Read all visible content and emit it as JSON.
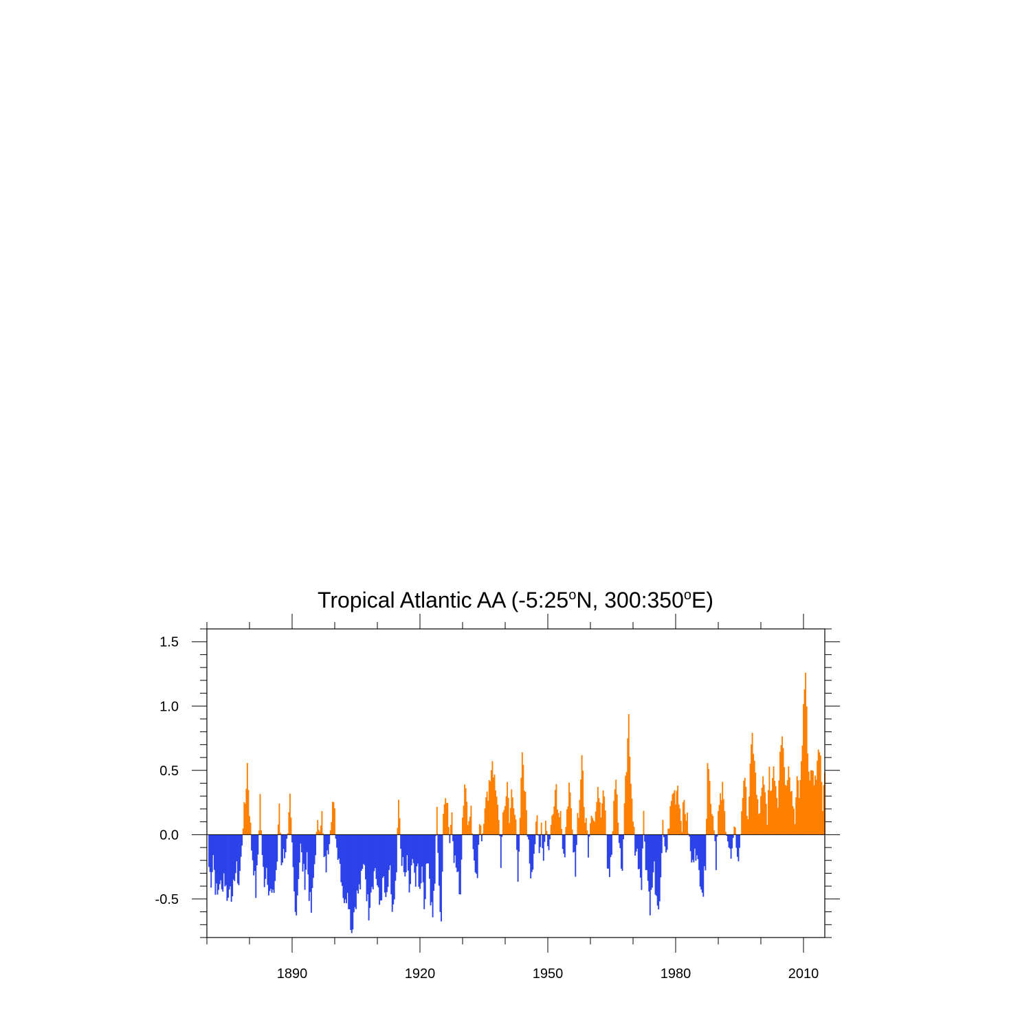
{
  "chart_data": {
    "type": "bar",
    "title": {
      "main": "Tropical Atlantic AA (-5:25",
      "deg1": "o",
      "mid": "N, 300:350",
      "deg2": "o",
      "end": "E)"
    },
    "xlabel": "",
    "ylabel": "",
    "xlim": [
      1870,
      2015
    ],
    "ylim": [
      -0.8,
      1.6
    ],
    "grid": false,
    "x_tick_labels": [
      {
        "value": 1890,
        "label": "1890"
      },
      {
        "value": 1920,
        "label": "1920"
      },
      {
        "value": 1950,
        "label": "1950"
      },
      {
        "value": 1980,
        "label": "1980"
      },
      {
        "value": 2010,
        "label": "2010"
      }
    ],
    "y_tick_labels": [
      {
        "value": -0.5,
        "label": "-0.5"
      },
      {
        "value": 0.0,
        "label": "0.0"
      },
      {
        "value": 0.5,
        "label": "0.5"
      },
      {
        "value": 1.0,
        "label": "1.0"
      },
      {
        "value": 1.5,
        "label": "1.5"
      }
    ],
    "colors": {
      "positive": "#ff8000",
      "negative": "#2b42e8",
      "axis": "#000000"
    },
    "sample_interval_years": 0.25,
    "x_start": 1870.5,
    "keyframes": [
      [
        1870.5,
        -0.25
      ],
      [
        1871.0,
        -0.35
      ],
      [
        1871.5,
        -0.15
      ],
      [
        1872.0,
        -0.4
      ],
      [
        1872.5,
        -0.48
      ],
      [
        1873.0,
        -0.35
      ],
      [
        1873.5,
        -0.45
      ],
      [
        1874.0,
        -0.3
      ],
      [
        1874.5,
        -0.42
      ],
      [
        1875.0,
        -0.5
      ],
      [
        1875.5,
        -0.35
      ],
      [
        1876.0,
        -0.55
      ],
      [
        1876.5,
        -0.3
      ],
      [
        1877.0,
        -0.28
      ],
      [
        1877.5,
        -0.38
      ],
      [
        1878.0,
        -0.2
      ],
      [
        1878.5,
        0.1
      ],
      [
        1879.0,
        0.25
      ],
      [
        1879.5,
        0.55
      ],
      [
        1880.0,
        0.2
      ],
      [
        1880.5,
        -0.1
      ],
      [
        1881.0,
        -0.25
      ],
      [
        1881.5,
        -0.45
      ],
      [
        1882.0,
        -0.15
      ],
      [
        1882.5,
        0.3
      ],
      [
        1883.0,
        -0.2
      ],
      [
        1883.5,
        -0.35
      ],
      [
        1884.0,
        -0.25
      ],
      [
        1884.5,
        -0.4
      ],
      [
        1885.0,
        -0.45
      ],
      [
        1885.5,
        -0.5
      ],
      [
        1886.0,
        -0.35
      ],
      [
        1886.5,
        -0.2
      ],
      [
        1887.0,
        0.25
      ],
      [
        1887.5,
        -0.2
      ],
      [
        1888.0,
        -0.15
      ],
      [
        1888.5,
        -0.1
      ],
      [
        1889.0,
        -0.05
      ],
      [
        1889.5,
        0.25
      ],
      [
        1890.0,
        -0.1
      ],
      [
        1890.5,
        -0.45
      ],
      [
        1891.0,
        -0.6
      ],
      [
        1891.5,
        -0.3
      ],
      [
        1892.0,
        -0.1
      ],
      [
        1892.5,
        -0.25
      ],
      [
        1893.0,
        -0.35
      ],
      [
        1893.5,
        -0.15
      ],
      [
        1894.0,
        -0.45
      ],
      [
        1894.5,
        -0.6
      ],
      [
        1895.0,
        -0.35
      ],
      [
        1895.5,
        -0.1
      ],
      [
        1896.0,
        0.05
      ],
      [
        1896.5,
        0.1
      ],
      [
        1897.0,
        0.15
      ],
      [
        1897.5,
        -0.2
      ],
      [
        1898.0,
        -0.25
      ],
      [
        1898.5,
        -0.1
      ],
      [
        1899.0,
        0.1
      ],
      [
        1899.5,
        0.25
      ],
      [
        1900.0,
        0.15
      ],
      [
        1900.5,
        -0.1
      ],
      [
        1901.0,
        -0.15
      ],
      [
        1901.5,
        -0.3
      ],
      [
        1902.0,
        -0.45
      ],
      [
        1902.5,
        -0.55
      ],
      [
        1903.0,
        -0.4
      ],
      [
        1903.5,
        -0.6
      ],
      [
        1904.0,
        -0.75
      ],
      [
        1904.5,
        -0.6
      ],
      [
        1905.0,
        -0.5
      ],
      [
        1905.5,
        -0.45
      ],
      [
        1906.0,
        -0.4
      ],
      [
        1906.5,
        -0.3
      ],
      [
        1907.0,
        -0.2
      ],
      [
        1907.5,
        -0.45
      ],
      [
        1908.0,
        -0.6
      ],
      [
        1908.5,
        -0.4
      ],
      [
        1909.0,
        -0.35
      ],
      [
        1909.5,
        -0.25
      ],
      [
        1910.0,
        -0.4
      ],
      [
        1910.5,
        -0.55
      ],
      [
        1911.0,
        -0.45
      ],
      [
        1911.5,
        -0.35
      ],
      [
        1912.0,
        -0.55
      ],
      [
        1912.5,
        -0.4
      ],
      [
        1913.0,
        -0.3
      ],
      [
        1913.5,
        -0.6
      ],
      [
        1914.0,
        -0.55
      ],
      [
        1914.5,
        -0.3
      ],
      [
        1915.0,
        0.25
      ],
      [
        1915.5,
        -0.1
      ],
      [
        1916.0,
        -0.25
      ],
      [
        1916.5,
        -0.35
      ],
      [
        1917.0,
        -0.2
      ],
      [
        1917.5,
        -0.45
      ],
      [
        1918.0,
        -0.3
      ],
      [
        1918.5,
        -0.15
      ],
      [
        1919.0,
        -0.4
      ],
      [
        1919.5,
        -0.25
      ],
      [
        1920.0,
        -0.45
      ],
      [
        1920.5,
        -0.2
      ],
      [
        1921.0,
        -0.55
      ],
      [
        1921.5,
        -0.3
      ],
      [
        1922.0,
        -0.15
      ],
      [
        1922.5,
        -0.5
      ],
      [
        1923.0,
        -0.6
      ],
      [
        1923.5,
        -0.35
      ],
      [
        1924.0,
        0.2
      ],
      [
        1924.5,
        -0.45
      ],
      [
        1925.0,
        -0.65
      ],
      [
        1925.5,
        0.1
      ],
      [
        1926.0,
        0.35
      ],
      [
        1926.5,
        0.25
      ],
      [
        1927.0,
        -0.05
      ],
      [
        1927.5,
        0.2
      ],
      [
        1928.0,
        -0.15
      ],
      [
        1928.5,
        -0.25
      ],
      [
        1929.0,
        -0.35
      ],
      [
        1929.5,
        -0.45
      ],
      [
        1930.0,
        0.15
      ],
      [
        1930.5,
        0.45
      ],
      [
        1931.0,
        0.2
      ],
      [
        1931.5,
        0.1
      ],
      [
        1932.0,
        0.25
      ],
      [
        1932.5,
        -0.15
      ],
      [
        1933.0,
        -0.25
      ],
      [
        1933.5,
        -0.4
      ],
      [
        1934.0,
        0.1
      ],
      [
        1934.5,
        -0.1
      ],
      [
        1935.0,
        0.15
      ],
      [
        1935.5,
        0.35
      ],
      [
        1936.0,
        0.25
      ],
      [
        1936.5,
        0.45
      ],
      [
        1937.0,
        0.6
      ],
      [
        1937.5,
        0.4
      ],
      [
        1938.0,
        0.25
      ],
      [
        1938.5,
        0.15
      ],
      [
        1939.0,
        -0.2
      ],
      [
        1939.5,
        0.1
      ],
      [
        1940.0,
        0.25
      ],
      [
        1940.5,
        0.4
      ],
      [
        1941.0,
        0.15
      ],
      [
        1941.5,
        0.3
      ],
      [
        1942.0,
        0.2
      ],
      [
        1942.5,
        0.1
      ],
      [
        1943.0,
        -0.3
      ],
      [
        1943.5,
        0.15
      ],
      [
        1944.0,
        0.6
      ],
      [
        1944.5,
        0.35
      ],
      [
        1945.0,
        0.2
      ],
      [
        1945.5,
        -0.1
      ],
      [
        1946.0,
        -0.3
      ],
      [
        1946.5,
        -0.2
      ],
      [
        1947.0,
        -0.05
      ],
      [
        1947.5,
        0.1
      ],
      [
        1948.0,
        -0.15
      ],
      [
        1948.5,
        0.1
      ],
      [
        1949.0,
        -0.2
      ],
      [
        1949.5,
        0.15
      ],
      [
        1950.0,
        -0.1
      ],
      [
        1950.5,
        -0.05
      ],
      [
        1951.0,
        0.15
      ],
      [
        1951.5,
        0.3
      ],
      [
        1952.0,
        0.4
      ],
      [
        1952.5,
        0.15
      ],
      [
        1953.0,
        0.25
      ],
      [
        1953.5,
        -0.1
      ],
      [
        1954.0,
        -0.25
      ],
      [
        1954.5,
        0.25
      ],
      [
        1955.0,
        0.35
      ],
      [
        1955.5,
        0.15
      ],
      [
        1956.0,
        -0.15
      ],
      [
        1956.5,
        -0.25
      ],
      [
        1957.0,
        0.15
      ],
      [
        1957.5,
        0.25
      ],
      [
        1958.0,
        0.65
      ],
      [
        1958.5,
        0.2
      ],
      [
        1959.0,
        0.1
      ],
      [
        1959.5,
        -0.1
      ],
      [
        1960.0,
        0.15
      ],
      [
        1960.5,
        0.2
      ],
      [
        1961.0,
        0.1
      ],
      [
        1961.5,
        0.25
      ],
      [
        1962.0,
        0.35
      ],
      [
        1962.5,
        0.2
      ],
      [
        1963.0,
        0.4
      ],
      [
        1963.5,
        0.25
      ],
      [
        1964.0,
        -0.2
      ],
      [
        1964.5,
        -0.3
      ],
      [
        1965.0,
        -0.15
      ],
      [
        1965.5,
        0.2
      ],
      [
        1966.0,
        0.45
      ],
      [
        1966.5,
        0.1
      ],
      [
        1967.0,
        -0.15
      ],
      [
        1967.5,
        -0.3
      ],
      [
        1968.0,
        0.25
      ],
      [
        1968.5,
        0.55
      ],
      [
        1969.0,
        0.95
      ],
      [
        1969.5,
        0.35
      ],
      [
        1970.0,
        0.15
      ],
      [
        1970.5,
        -0.1
      ],
      [
        1971.0,
        -0.15
      ],
      [
        1971.5,
        -0.25
      ],
      [
        1972.0,
        -0.35
      ],
      [
        1972.5,
        0.15
      ],
      [
        1973.0,
        -0.2
      ],
      [
        1973.5,
        -0.35
      ],
      [
        1974.0,
        -0.55
      ],
      [
        1974.5,
        -0.4
      ],
      [
        1975.0,
        -0.25
      ],
      [
        1975.5,
        -0.55
      ],
      [
        1976.0,
        -0.65
      ],
      [
        1976.5,
        -0.3
      ],
      [
        1977.0,
        0.05
      ],
      [
        1977.5,
        -0.15
      ],
      [
        1978.0,
        -0.1
      ],
      [
        1978.5,
        0.1
      ],
      [
        1979.0,
        0.25
      ],
      [
        1979.5,
        0.35
      ],
      [
        1980.0,
        0.3
      ],
      [
        1980.5,
        0.4
      ],
      [
        1981.0,
        0.2
      ],
      [
        1981.5,
        0.1
      ],
      [
        1982.0,
        0.25
      ],
      [
        1982.5,
        0.15
      ],
      [
        1983.0,
        0.05
      ],
      [
        1983.5,
        -0.15
      ],
      [
        1984.0,
        -0.25
      ],
      [
        1984.5,
        -0.05
      ],
      [
        1985.0,
        -0.2
      ],
      [
        1985.5,
        -0.3
      ],
      [
        1986.0,
        -0.35
      ],
      [
        1986.5,
        -0.45
      ],
      [
        1987.0,
        -0.2
      ],
      [
        1987.5,
        0.6
      ],
      [
        1988.0,
        0.4
      ],
      [
        1988.5,
        0.2
      ],
      [
        1989.0,
        0.1
      ],
      [
        1989.5,
        -0.2
      ],
      [
        1990.0,
        0.15
      ],
      [
        1990.5,
        0.25
      ],
      [
        1991.0,
        0.35
      ],
      [
        1991.5,
        0.15
      ],
      [
        1992.0,
        0.05
      ],
      [
        1992.5,
        -0.1
      ],
      [
        1993.0,
        -0.2
      ],
      [
        1993.5,
        -0.1
      ],
      [
        1994.0,
        0.1
      ],
      [
        1994.5,
        -0.2
      ],
      [
        1995.0,
        -0.15
      ],
      [
        1995.5,
        0.2
      ],
      [
        1996.0,
        0.45
      ],
      [
        1996.5,
        0.3
      ],
      [
        1997.0,
        0.15
      ],
      [
        1997.5,
        0.5
      ],
      [
        1998.0,
        0.75
      ],
      [
        1998.5,
        0.6
      ],
      [
        1999.0,
        0.3
      ],
      [
        1999.5,
        0.15
      ],
      [
        2000.0,
        0.25
      ],
      [
        2000.5,
        0.4
      ],
      [
        2001.0,
        0.3
      ],
      [
        2001.5,
        0.15
      ],
      [
        2002.0,
        0.45
      ],
      [
        2002.5,
        0.35
      ],
      [
        2003.0,
        0.55
      ],
      [
        2003.5,
        0.4
      ],
      [
        2004.0,
        0.25
      ],
      [
        2004.5,
        0.7
      ],
      [
        2005.0,
        0.8
      ],
      [
        2005.5,
        0.55
      ],
      [
        2006.0,
        0.35
      ],
      [
        2006.5,
        0.6
      ],
      [
        2007.0,
        0.4
      ],
      [
        2007.5,
        0.25
      ],
      [
        2008.0,
        0.15
      ],
      [
        2008.5,
        0.4
      ],
      [
        2009.0,
        0.3
      ],
      [
        2009.5,
        0.55
      ],
      [
        2010.0,
        0.95
      ],
      [
        2010.5,
        1.3
      ],
      [
        2011.0,
        0.7
      ],
      [
        2011.5,
        0.4
      ],
      [
        2012.0,
        0.55
      ],
      [
        2012.5,
        0.35
      ],
      [
        2013.0,
        0.45
      ],
      [
        2013.5,
        0.65
      ],
      [
        2014.0,
        0.55
      ],
      [
        2014.5,
        0.2
      ],
      [
        2015.0,
        0.45
      ]
    ]
  }
}
